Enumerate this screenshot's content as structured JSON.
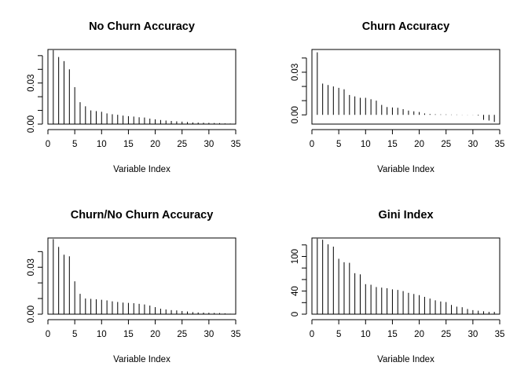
{
  "chart_data": [
    {
      "type": "bar",
      "title": "No Churn Accuracy",
      "xlabel": "Variable Index",
      "ylabel": "",
      "xlim": [
        0,
        35
      ],
      "ylim": [
        0,
        0.0545
      ],
      "xticks": [
        0,
        5,
        10,
        15,
        20,
        25,
        30,
        35
      ],
      "xtick_labels": [
        "0",
        "5",
        "10",
        "15",
        "20",
        "25",
        "30",
        "35"
      ],
      "yticks": [
        0,
        0.03
      ],
      "ytick_labels": [
        "0.00",
        "0.03"
      ],
      "ytick_marks": [
        0,
        0.01,
        0.02,
        0.03,
        0.04,
        0.05
      ],
      "x": [
        1,
        2,
        3,
        4,
        5,
        6,
        7,
        8,
        9,
        10,
        11,
        12,
        13,
        14,
        15,
        16,
        17,
        18,
        19,
        20,
        21,
        22,
        23,
        24,
        25,
        26,
        27,
        28,
        29,
        30,
        31,
        32,
        33,
        34
      ],
      "values": [
        0.054,
        0.049,
        0.046,
        0.04,
        0.027,
        0.016,
        0.013,
        0.01,
        0.0095,
        0.009,
        0.0078,
        0.0072,
        0.0068,
        0.0062,
        0.0058,
        0.0055,
        0.005,
        0.0048,
        0.004,
        0.0035,
        0.003,
        0.0026,
        0.0023,
        0.002,
        0.0018,
        0.0015,
        0.0012,
        0.0011,
        0.001,
        0.0009,
        0.0008,
        0.0007,
        0.0005,
        0.0004
      ]
    },
    {
      "type": "bar",
      "title": "Churn Accuracy",
      "xlabel": "Variable Index",
      "ylabel": "",
      "xlim": [
        0,
        35
      ],
      "ylim": [
        -0.0065,
        0.046
      ],
      "xticks": [
        0,
        5,
        10,
        15,
        20,
        25,
        30,
        35
      ],
      "xtick_labels": [
        "0",
        "5",
        "10",
        "15",
        "20",
        "25",
        "30",
        "35"
      ],
      "yticks": [
        0,
        0.03
      ],
      "ytick_labels": [
        "0.00",
        "0.03"
      ],
      "ytick_marks": [
        0,
        0.01,
        0.02,
        0.03,
        0.04
      ],
      "x": [
        1,
        2,
        3,
        4,
        5,
        6,
        7,
        8,
        9,
        10,
        11,
        12,
        13,
        14,
        15,
        16,
        17,
        18,
        19,
        20,
        21,
        22,
        23,
        24,
        25,
        26,
        27,
        28,
        29,
        30,
        31,
        32,
        33,
        34
      ],
      "values": [
        0.044,
        0.022,
        0.021,
        0.02,
        0.019,
        0.018,
        0.014,
        0.013,
        0.012,
        0.012,
        0.011,
        0.01,
        0.007,
        0.0055,
        0.0052,
        0.005,
        0.004,
        0.003,
        0.0025,
        0.002,
        0.001,
        0.0006,
        0.0004,
        0.0003,
        0.0003,
        0.0002,
        0.0002,
        0.0001,
        0.0001,
        0.0001,
        -0.0005,
        -0.0035,
        -0.004,
        -0.005
      ]
    },
    {
      "type": "bar",
      "title": "Churn/No Churn Accuracy",
      "xlabel": "Variable Index",
      "ylabel": "",
      "xlim": [
        0,
        35
      ],
      "ylim": [
        0,
        0.0487
      ],
      "xticks": [
        0,
        5,
        10,
        15,
        20,
        25,
        30,
        35
      ],
      "xtick_labels": [
        "0",
        "5",
        "10",
        "15",
        "20",
        "25",
        "30",
        "35"
      ],
      "yticks": [
        0,
        0.03
      ],
      "ytick_labels": [
        "0.00",
        "0.03"
      ],
      "ytick_marks": [
        0,
        0.01,
        0.02,
        0.03,
        0.04
      ],
      "x": [
        1,
        2,
        3,
        4,
        5,
        6,
        7,
        8,
        9,
        10,
        11,
        12,
        13,
        14,
        15,
        16,
        17,
        18,
        19,
        20,
        21,
        22,
        23,
        24,
        25,
        26,
        27,
        28,
        29,
        30,
        31,
        32,
        33,
        34
      ],
      "values": [
        0.048,
        0.043,
        0.038,
        0.037,
        0.021,
        0.013,
        0.01,
        0.0098,
        0.0095,
        0.0092,
        0.0088,
        0.0082,
        0.0078,
        0.0074,
        0.0072,
        0.007,
        0.0066,
        0.0062,
        0.0055,
        0.0045,
        0.0035,
        0.003,
        0.0026,
        0.0024,
        0.002,
        0.0017,
        0.0013,
        0.0011,
        0.001,
        0.0009,
        0.0008,
        0.0007,
        0.0005,
        0.0003
      ]
    },
    {
      "type": "bar",
      "title": "Gini Index",
      "xlabel": "Variable Index",
      "ylabel": "",
      "xlim": [
        0,
        35
      ],
      "ylim": [
        0,
        132
      ],
      "xticks": [
        0,
        5,
        10,
        15,
        20,
        25,
        30,
        35
      ],
      "xtick_labels": [
        "0",
        "5",
        "10",
        "15",
        "20",
        "25",
        "30",
        "35"
      ],
      "yticks": [
        0,
        40,
        100
      ],
      "ytick_labels": [
        "0",
        "40",
        "100"
      ],
      "ytick_marks": [
        0,
        20,
        40,
        60,
        80,
        100,
        120
      ],
      "x": [
        1,
        2,
        3,
        4,
        5,
        6,
        7,
        8,
        9,
        10,
        11,
        12,
        13,
        14,
        15,
        16,
        17,
        18,
        19,
        20,
        21,
        22,
        23,
        24,
        25,
        26,
        27,
        28,
        29,
        30,
        31,
        32,
        33,
        34
      ],
      "values": [
        131,
        129,
        121,
        117,
        96,
        90,
        89,
        71,
        69,
        52,
        51,
        47,
        46,
        45,
        43,
        42,
        40,
        37,
        35,
        33,
        30,
        27,
        24,
        22,
        21,
        16,
        13,
        12,
        9,
        7,
        6,
        5,
        4,
        4
      ]
    }
  ]
}
